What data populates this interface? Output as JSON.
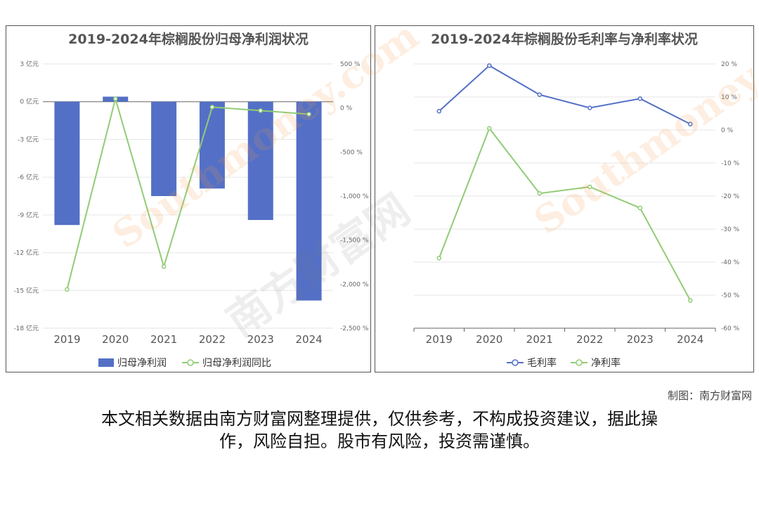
{
  "chart_data": [
    {
      "type": "bar+line",
      "title": "2019-2024年棕榈股份归母净利润状况",
      "categories": [
        "2019",
        "2020",
        "2021",
        "2022",
        "2023",
        "2024"
      ],
      "left_axis": {
        "ticks": [
          "3 亿元",
          "0 亿元",
          "-3 亿元",
          "-6 亿元",
          "-9 亿元",
          "-12 亿元",
          "-15 亿元",
          "-18 亿元"
        ],
        "range": [
          -18,
          3
        ]
      },
      "right_axis": {
        "ticks": [
          "500 %",
          "0 %",
          "-500 %",
          "-1,000 %",
          "-1,500 %",
          "-2,000 %",
          "-2,500 %"
        ],
        "range": [
          -2500,
          500
        ]
      },
      "series": [
        {
          "name": "归母净利润",
          "type": "bar",
          "axis": "left",
          "color": "#5470c6",
          "values": [
            -9.8,
            0.4,
            -7.5,
            -6.9,
            -9.4,
            -15.8
          ]
        },
        {
          "name": "归母净利润同比",
          "type": "line",
          "axis": "right",
          "color": "#91cc75",
          "values": [
            -2060,
            105,
            -1800,
            10,
            -30,
            -70
          ]
        }
      ],
      "legend": "bottom-center",
      "grid": true
    },
    {
      "type": "line",
      "title": "2019-2024年棕榈股份毛利率与净利率状况",
      "categories": [
        "2019",
        "2020",
        "2021",
        "2022",
        "2023",
        "2024"
      ],
      "right_axis": {
        "ticks": [
          "20 %",
          "10 %",
          "0 %",
          "-10 %",
          "-20 %",
          "-30 %",
          "-40 %",
          "-50 %",
          "-60 %"
        ],
        "range": [
          -60,
          20
        ]
      },
      "series": [
        {
          "name": "毛利率",
          "color": "#5470c6",
          "values": [
            5.7,
            19.5,
            10.7,
            6.7,
            9.5,
            1.8
          ]
        },
        {
          "name": "净利率",
          "color": "#91cc75",
          "values": [
            -38.8,
            0.5,
            -19.2,
            -17.2,
            -23.6,
            -51.6
          ]
        }
      ],
      "legend": "bottom-center",
      "grid": true
    }
  ],
  "footer": {
    "credit": "制图：南方财富网",
    "disclaimer_line1": "本文相关数据由南方财富网整理提供，仅供参考，不构成投资建议，据此操",
    "disclaimer_line2": "作，风险自担。股市有风险，投资需谨慎。"
  },
  "watermark": {
    "text_cn": "南方财富网",
    "text_en": "Southmoney.com"
  }
}
